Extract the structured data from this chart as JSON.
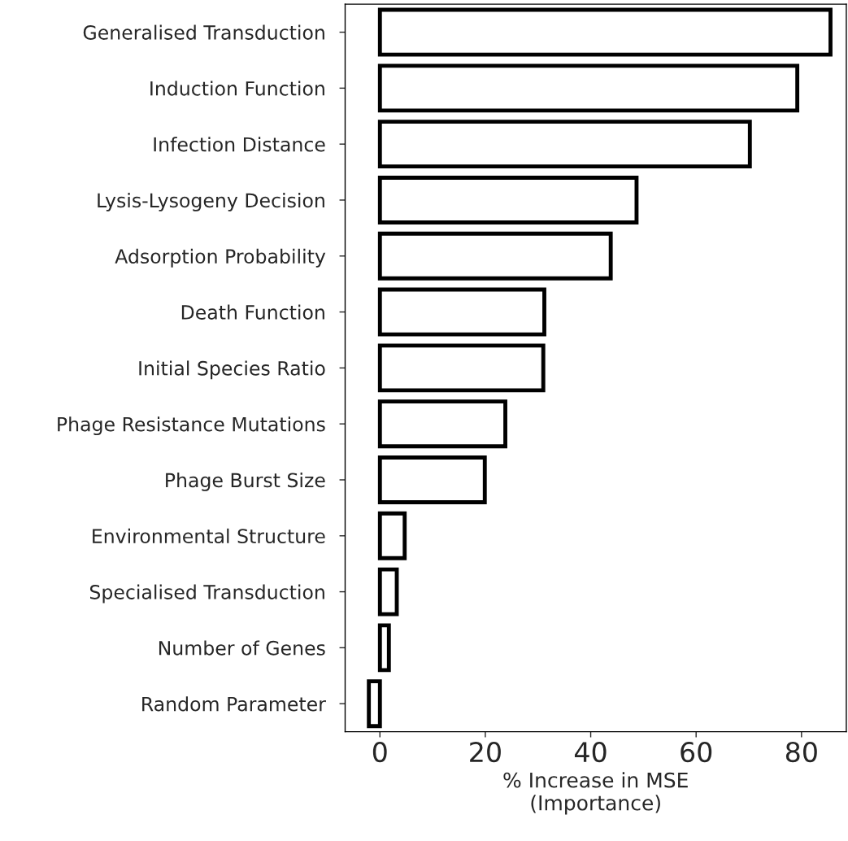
{
  "chart_data": {
    "type": "bar",
    "orientation": "horizontal",
    "categories": [
      "Generalised Transduction",
      "Induction Function",
      "Infection Distance",
      "Lysis-Lysogeny Decision",
      "Adsorption Probability",
      "Death Function",
      "Initial Species Ratio",
      "Phage Resistance Mutations",
      "Phage Burst Size",
      "Environmental Structure",
      "Specialised Transduction",
      "Number of Genes",
      "Random Parameter"
    ],
    "values": [
      85.5,
      79.2,
      70.2,
      48.7,
      43.8,
      31.2,
      31.0,
      23.8,
      19.9,
      4.7,
      3.2,
      1.7,
      -2.1
    ],
    "color": "#000000",
    "xlabel": "% Increase in MSE\n(Importance)",
    "xlim": [
      -6.6,
      88.5
    ],
    "xticks": [
      0,
      20,
      40,
      60,
      80
    ],
    "grid": false,
    "legend": false
  }
}
